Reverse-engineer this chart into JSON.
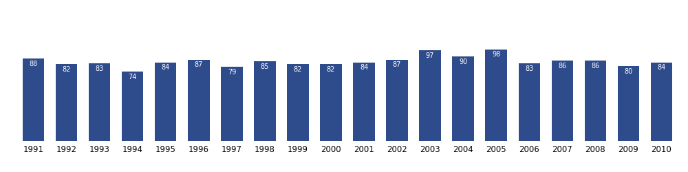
{
  "years": [
    1991,
    1992,
    1993,
    1994,
    1995,
    1996,
    1997,
    1998,
    1999,
    2000,
    2001,
    2002,
    2003,
    2004,
    2005,
    2006,
    2007,
    2008,
    2009,
    2010
  ],
  "values": [
    88,
    82,
    83,
    74,
    84,
    87,
    79,
    85,
    82,
    82,
    84,
    87,
    97,
    90,
    98,
    83,
    86,
    86,
    80,
    84
  ],
  "bar_color": "#2E4B8C",
  "label_color": "#FFFFFF",
  "label_fontsize": 7.0,
  "xlabel_fontsize": 8.5,
  "background_color": "#FFFFFF",
  "ylim": [
    0,
    145
  ],
  "bar_width": 0.65
}
